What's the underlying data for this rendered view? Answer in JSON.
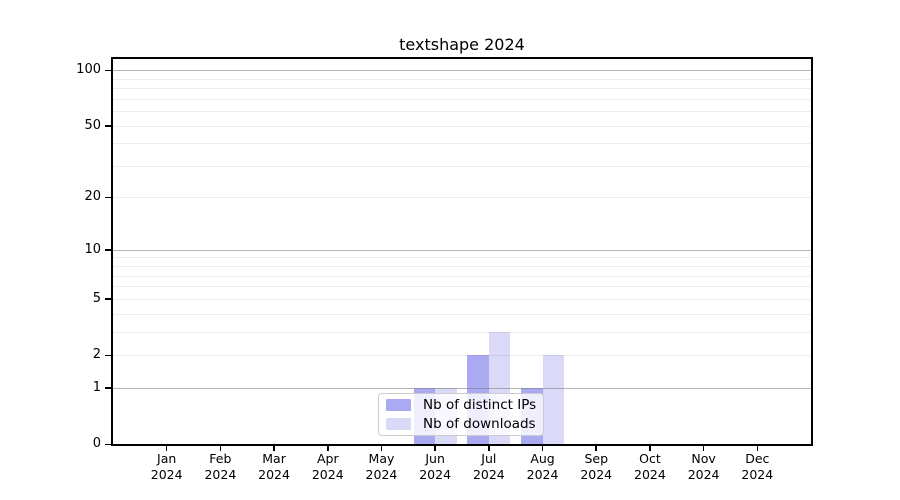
{
  "page": {
    "background": "#ffffff"
  },
  "chart_data": {
    "type": "bar",
    "title": "textshape 2024",
    "x": {
      "categories": [
        "Jan",
        "Feb",
        "Mar",
        "Apr",
        "May",
        "Jun",
        "Jul",
        "Aug",
        "Sep",
        "Oct",
        "Nov",
        "Dec"
      ],
      "sub_label": "2024"
    },
    "series": [
      {
        "name": "Nb of distinct IPs",
        "color": "#aaaaf2",
        "values": [
          0,
          0,
          0,
          0,
          0,
          1,
          2,
          1,
          0,
          0,
          0,
          0
        ]
      },
      {
        "name": "Nb of downloads",
        "color": "#dadaf8",
        "values": [
          0,
          0,
          0,
          0,
          0,
          1,
          3,
          2,
          0,
          0,
          0,
          0
        ]
      }
    ],
    "y_axis": {
      "scale": "log1p",
      "ticks": [
        0,
        1,
        2,
        5,
        10,
        20,
        50,
        100
      ],
      "tick_labels": [
        "0",
        "1",
        "2",
        "5",
        "10",
        "20",
        "50",
        "100"
      ],
      "major_gridlines": [
        1,
        10,
        100
      ],
      "minor_gridlines": [
        2,
        3,
        4,
        5,
        6,
        7,
        8,
        9,
        20,
        30,
        40,
        50,
        60,
        70,
        80,
        90
      ],
      "ylim": [
        0,
        115
      ]
    },
    "grid": true,
    "legend": {
      "position": "lower center"
    }
  },
  "style": {
    "axis_color": "#000000",
    "major_grid_color": "rgba(120,120,120,0.55)",
    "minor_grid_color": "rgba(0,0,0,0.07)",
    "legend_bg": "rgba(255,255,255,0.8)",
    "legend_border": "#cccccc"
  }
}
